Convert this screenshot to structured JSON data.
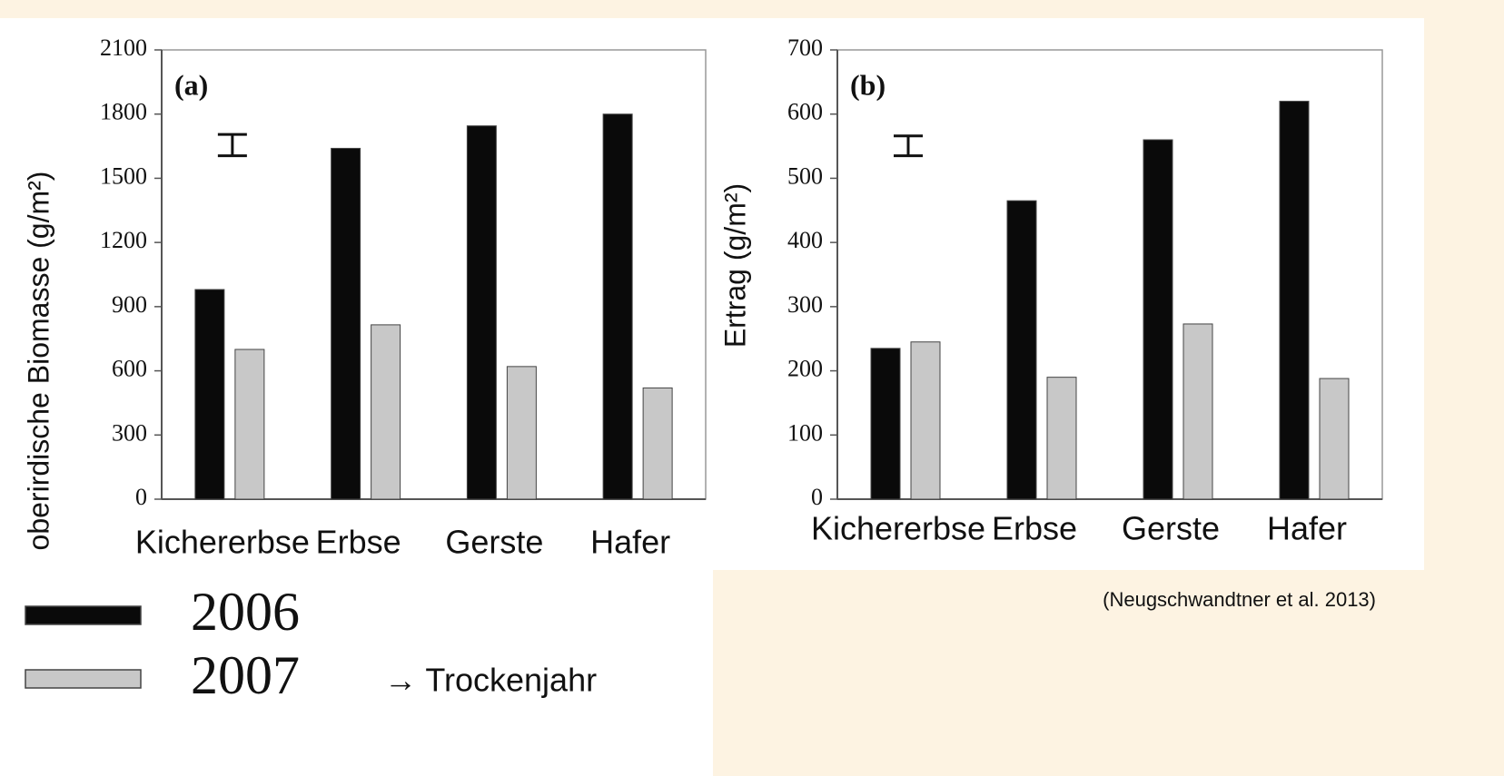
{
  "chart_data": [
    {
      "type": "bar",
      "panel_label": "(a)",
      "ylabel": "oberirdische Biomasse (g/m²)",
      "categories": [
        "Kichererbse",
        "Erbse",
        "Gerste",
        "Hafer"
      ],
      "series": [
        {
          "name": "2006",
          "color": "#0a0a0a",
          "values": [
            980,
            1640,
            1745,
            1800
          ]
        },
        {
          "name": "2007",
          "color": "#c8c8c8",
          "values": [
            700,
            815,
            620,
            520
          ]
        }
      ],
      "ylim": [
        0,
        2100
      ],
      "yticks": [
        0,
        300,
        600,
        900,
        1200,
        1500,
        1800,
        2100
      ],
      "error_bar": {
        "low": 1605,
        "high": 1705
      }
    },
    {
      "type": "bar",
      "panel_label": "(b)",
      "ylabel": "Ertrag (g/m²)",
      "categories": [
        "Kichererbse",
        "Erbse",
        "Gerste",
        "Hafer"
      ],
      "series": [
        {
          "color": "#0a0a0a",
          "values": [
            235,
            465,
            560,
            620
          ]
        },
        {
          "color": "#c8c8c8",
          "values": [
            245,
            190,
            273,
            188
          ]
        }
      ],
      "ylim": [
        0,
        700
      ],
      "yticks": [
        0,
        100,
        200,
        300,
        400,
        500,
        600,
        700
      ],
      "error_bar": {
        "low": 535,
        "high": 566
      }
    }
  ],
  "annotation": "→ Trockenjahr",
  "source": "(Neugschwandtner et al. 2013)"
}
